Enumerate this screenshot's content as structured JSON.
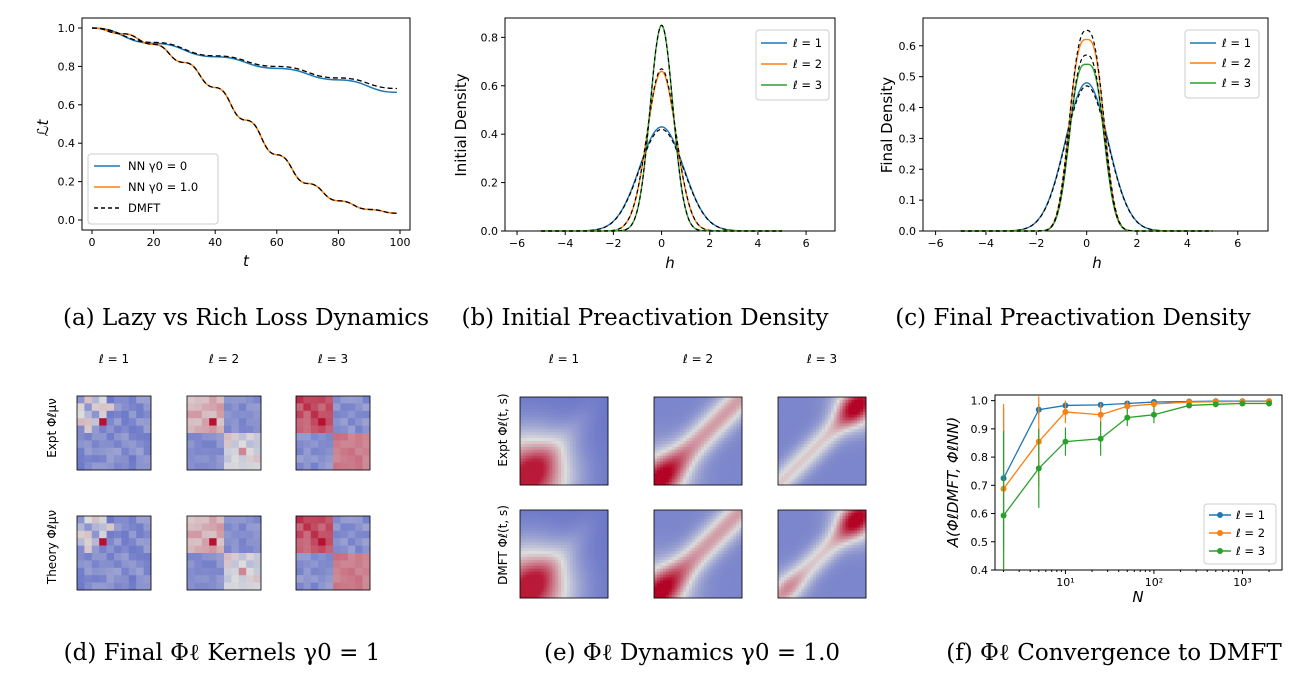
{
  "captions": {
    "a": "(a) Lazy vs Rich Loss Dynamics",
    "b": "(b) Initial Preactivation Density",
    "c": "(c) Final Preactivation Density",
    "d": "(d) Final Φℓ Kernels γ0 = 1",
    "e": "(e) Φℓ Dynamics γ0 = 1.0",
    "f": "(f) Φℓ Convergence to DMFT"
  },
  "colors": {
    "l1": "#1f77b4",
    "l2": "#ff7f0e",
    "l3": "#2ca02c",
    "dmft": "#000000"
  },
  "panel_d": {
    "col_titles": [
      "ℓ = 1",
      "ℓ = 2",
      "ℓ = 3"
    ],
    "row_labels": [
      "Expt Φℓμν",
      "Theory Φℓμν"
    ]
  },
  "panel_e": {
    "col_titles": [
      "ℓ = 1",
      "ℓ = 2",
      "ℓ = 3"
    ],
    "row_labels": [
      "Expt Φℓ(t, s)",
      "DMFT Φℓ(t, s)"
    ]
  },
  "chart_data": [
    {
      "type": "line",
      "xlabel": "t",
      "ylabel": "ℒt",
      "xlim": [
        0,
        100
      ],
      "ylim": [
        0,
        1.0
      ],
      "xticks": [
        "0",
        "20",
        "40",
        "60",
        "80",
        "100"
      ],
      "yticks": [
        "0.0",
        "0.2",
        "0.4",
        "0.6",
        "0.8",
        "1.0"
      ],
      "legend": [
        "NN γ0 = 0",
        "NN γ0 = 1.0",
        "DMFT"
      ],
      "legend_position": "lower-left",
      "series": [
        {
          "name": "NN γ0 = 0",
          "x": [
            0,
            20,
            40,
            60,
            80,
            99
          ],
          "y": [
            1.0,
            0.92,
            0.85,
            0.79,
            0.73,
            0.665
          ]
        },
        {
          "name": "NN γ0 = 1.0",
          "x": [
            0,
            10,
            20,
            30,
            40,
            50,
            60,
            70,
            80,
            90,
            99
          ],
          "y": [
            1.0,
            0.97,
            0.915,
            0.82,
            0.69,
            0.52,
            0.34,
            0.19,
            0.1,
            0.055,
            0.035
          ]
        },
        {
          "name": "DMFT",
          "x": [
            0,
            20,
            40,
            60,
            80,
            99
          ],
          "y": [
            1.0,
            0.925,
            0.855,
            0.8,
            0.74,
            0.685
          ]
        },
        {
          "name": "DMFT",
          "x": [
            0,
            10,
            20,
            30,
            40,
            50,
            60,
            70,
            80,
            90,
            99
          ],
          "y": [
            1.0,
            0.97,
            0.915,
            0.82,
            0.69,
            0.52,
            0.34,
            0.19,
            0.1,
            0.055,
            0.035
          ]
        }
      ]
    },
    {
      "type": "line",
      "xlabel": "h",
      "ylabel": "Initial Density",
      "xlim": [
        -6.5,
        7.2
      ],
      "ylim": [
        0,
        0.88
      ],
      "xticks": [
        "−6",
        "−4",
        "−2",
        "0",
        "2",
        "4",
        "6"
      ],
      "yticks": [
        "0.0",
        "0.2",
        "0.4",
        "0.6",
        "0.8"
      ],
      "legend": [
        "ℓ = 1",
        "ℓ = 2",
        "ℓ = 3"
      ],
      "legend_position": "top-right",
      "peaks": {
        "l1": 0.43,
        "l2": 0.66,
        "l3": 0.85
      }
    },
    {
      "type": "line",
      "xlabel": "h",
      "ylabel": "Final Density",
      "xlim": [
        -6.5,
        7.2
      ],
      "ylim": [
        0,
        0.69
      ],
      "xticks": [
        "−6",
        "−4",
        "−2",
        "0",
        "2",
        "4",
        "6"
      ],
      "yticks": [
        "0.0",
        "0.1",
        "0.2",
        "0.3",
        "0.4",
        "0.5",
        "0.6"
      ],
      "legend": [
        "ℓ = 1",
        "ℓ = 2",
        "ℓ = 3"
      ],
      "legend_position": "top-right",
      "peaks": {
        "l1": 0.48,
        "l2": 0.63,
        "l3": 0.55
      }
    },
    {
      "type": "line",
      "xlabel": "N",
      "ylabel": "A(ΦℓDMFT, ΦℓNN)",
      "xscale": "log",
      "ylim": [
        0.4,
        1.02
      ],
      "xticks": [
        "10¹",
        "10²",
        "10³"
      ],
      "yticks": [
        "0.4",
        "0.5",
        "0.6",
        "0.7",
        "0.8",
        "0.9",
        "1.0"
      ],
      "legend": [
        "ℓ = 1",
        "ℓ = 2",
        "ℓ = 3"
      ],
      "legend_position": "lower-right",
      "x": [
        2,
        5,
        10,
        25,
        50,
        100,
        250,
        500,
        1000,
        2000
      ],
      "series": [
        {
          "name": "ℓ = 1",
          "y": [
            0.725,
            0.968,
            0.983,
            0.985,
            0.99,
            0.995,
            0.997,
            0.998,
            0.998,
            0.998
          ],
          "err": [
            0.25,
            0.02,
            0.01,
            0.01,
            0.005,
            0.004,
            0.003,
            0.002,
            0.002,
            0.002
          ]
        },
        {
          "name": "ℓ = 2",
          "y": [
            0.688,
            0.855,
            0.96,
            0.95,
            0.98,
            0.988,
            0.995,
            0.996,
            0.997,
            0.997
          ],
          "err": [
            0.3,
            0.16,
            0.04,
            0.04,
            0.02,
            0.01,
            0.005,
            0.004,
            0.003,
            0.003
          ]
        },
        {
          "name": "ℓ = 3",
          "y": [
            0.593,
            0.76,
            0.855,
            0.865,
            0.94,
            0.95,
            0.983,
            0.987,
            0.99,
            0.99
          ],
          "err": [
            0.3,
            0.14,
            0.05,
            0.06,
            0.03,
            0.03,
            0.01,
            0.008,
            0.005,
            0.005
          ]
        }
      ]
    }
  ]
}
